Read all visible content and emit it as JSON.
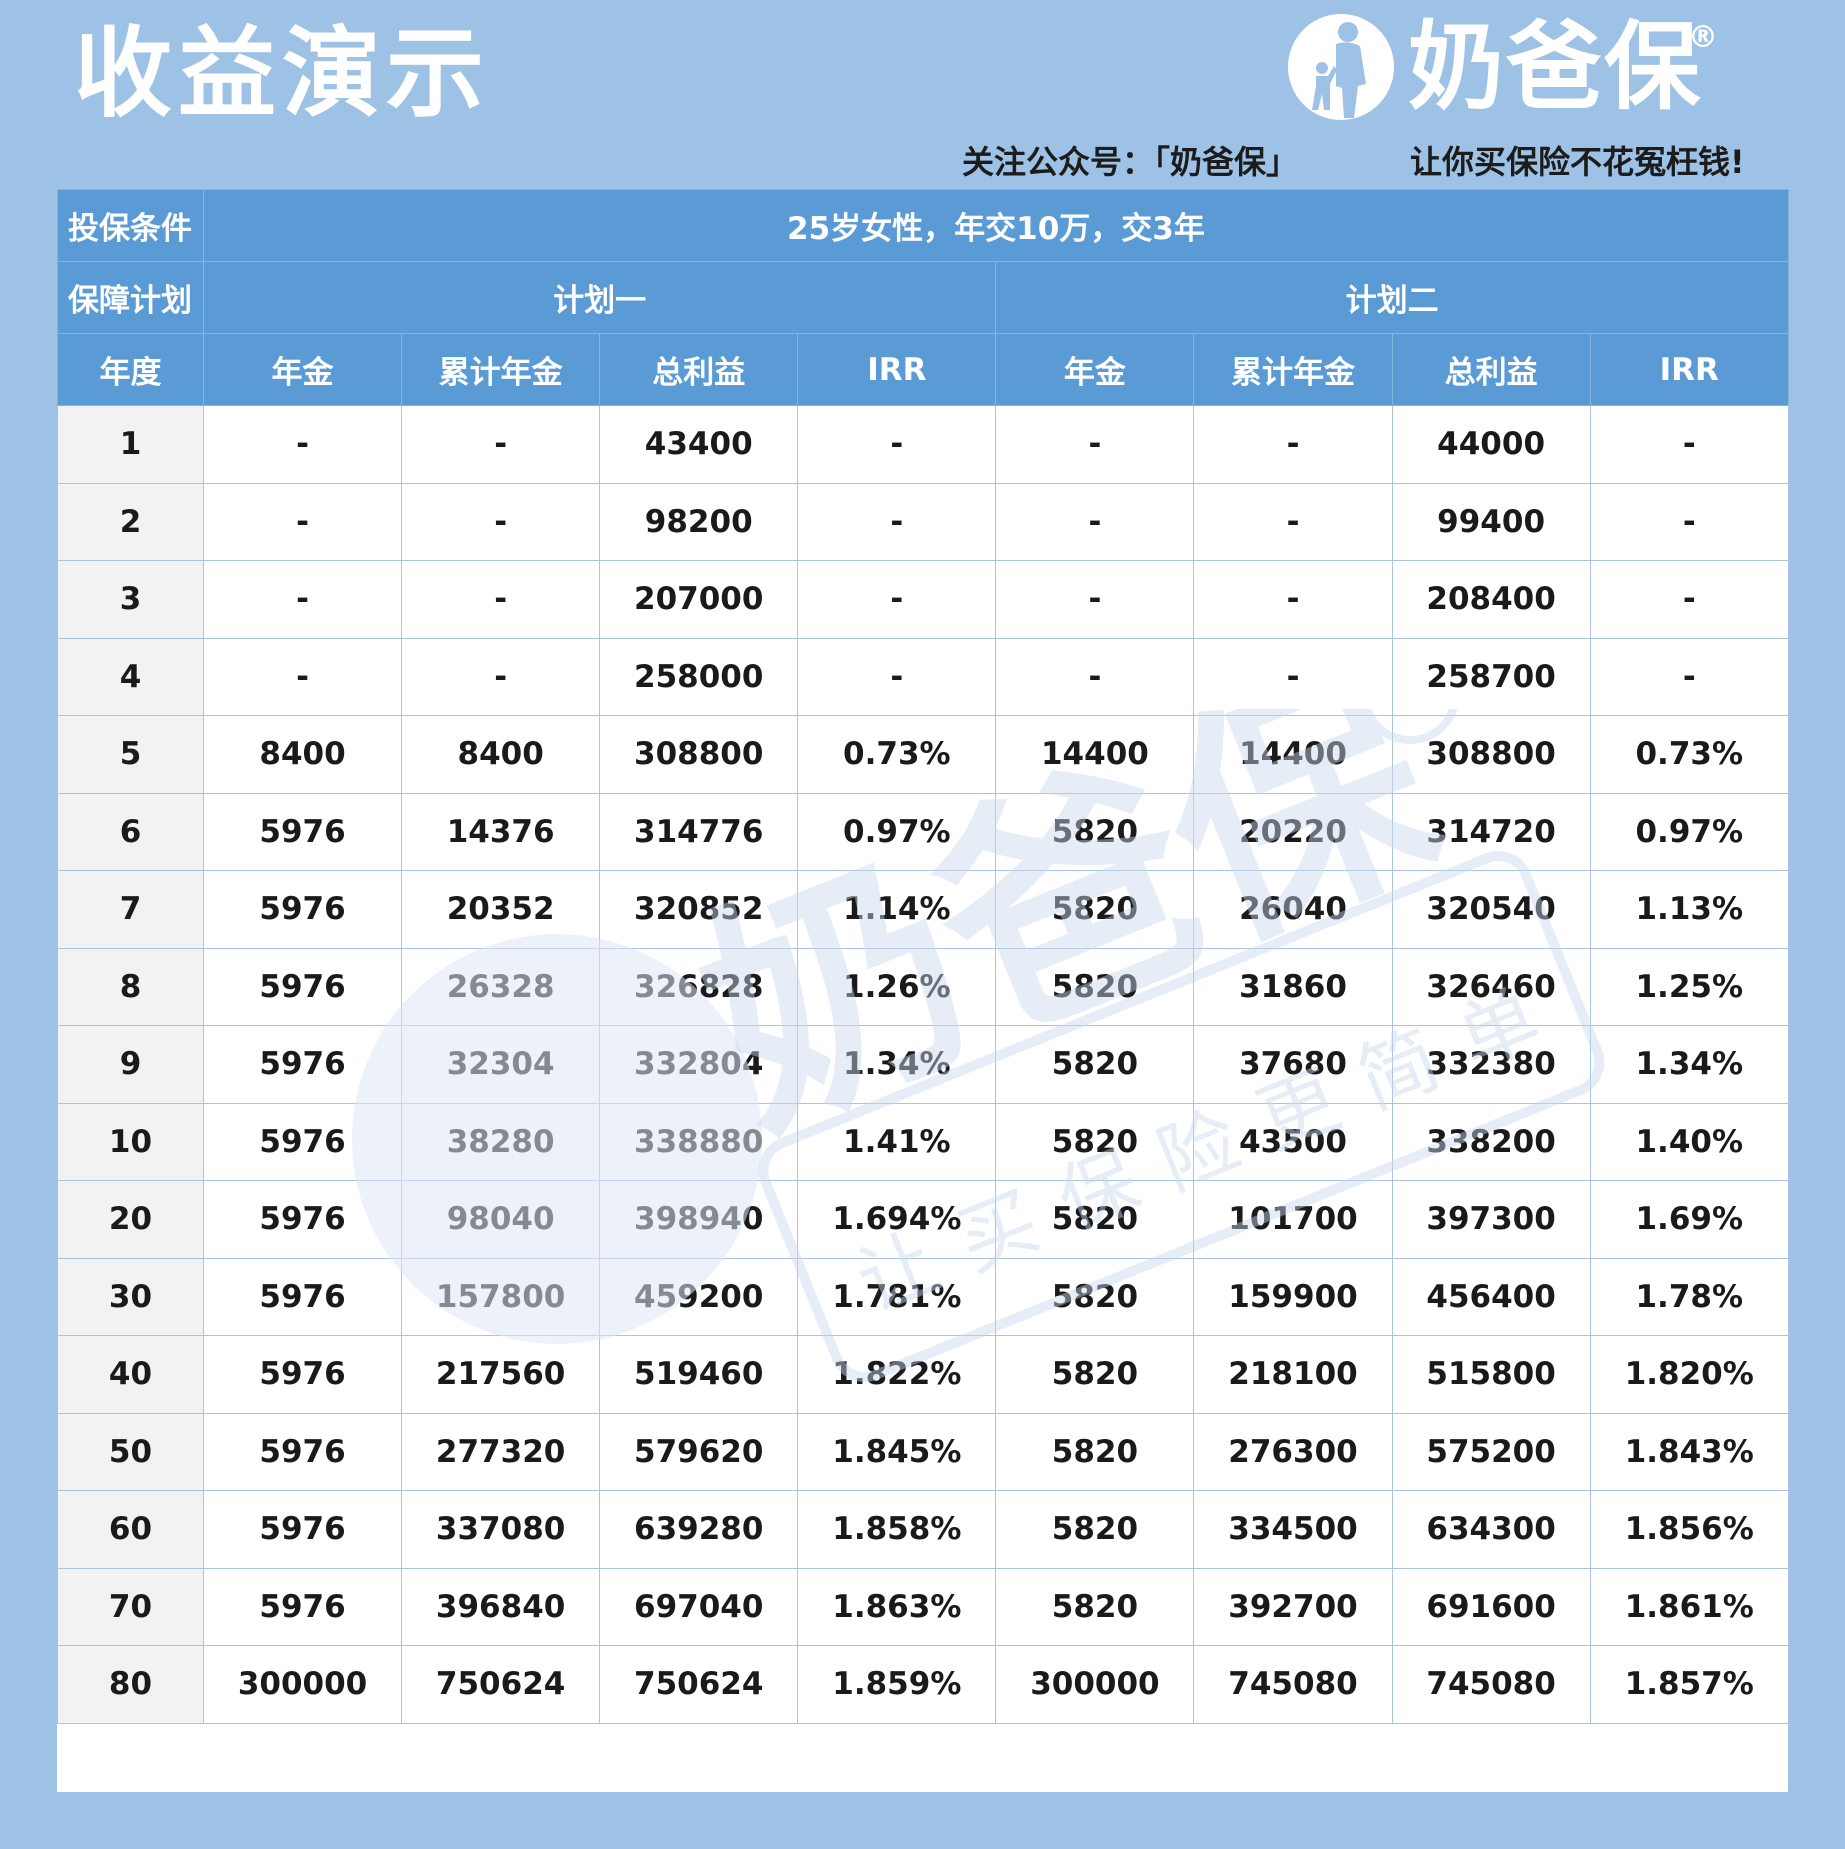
{
  "header": {
    "title": "收益演示",
    "logo_text": "奶爸保",
    "logo_mark": "®",
    "follow_text": "关注公众号：「奶爸保」",
    "slogan": "让你买保险不花冤枉钱!"
  },
  "table": {
    "conditions_label": "投保条件",
    "conditions_value": "25岁女性，年交10万，交3年",
    "plan_label": "保障计划",
    "plan1": "计划一",
    "plan2": "计划二",
    "columns": [
      "年度",
      "年金",
      "累计年金",
      "总利益",
      "IRR",
      "年金",
      "累计年金",
      "总利益",
      "IRR"
    ],
    "rows": [
      [
        "1",
        "-",
        "-",
        "43400",
        "-",
        "-",
        "-",
        "44000",
        "-"
      ],
      [
        "2",
        "-",
        "-",
        "98200",
        "-",
        "-",
        "-",
        "99400",
        "-"
      ],
      [
        "3",
        "-",
        "-",
        "207000",
        "-",
        "-",
        "-",
        "208400",
        "-"
      ],
      [
        "4",
        "-",
        "-",
        "258000",
        "-",
        "-",
        "-",
        "258700",
        "-"
      ],
      [
        "5",
        "8400",
        "8400",
        "308800",
        "0.73%",
        "14400",
        "14400",
        "308800",
        "0.73%"
      ],
      [
        "6",
        "5976",
        "14376",
        "314776",
        "0.97%",
        "5820",
        "20220",
        "314720",
        "0.97%"
      ],
      [
        "7",
        "5976",
        "20352",
        "320852",
        "1.14%",
        "5820",
        "26040",
        "320540",
        "1.13%"
      ],
      [
        "8",
        "5976",
        "26328",
        "326828",
        "1.26%",
        "5820",
        "31860",
        "326460",
        "1.25%"
      ],
      [
        "9",
        "5976",
        "32304",
        "332804",
        "1.34%",
        "5820",
        "37680",
        "332380",
        "1.34%"
      ],
      [
        "10",
        "5976",
        "38280",
        "338880",
        "1.41%",
        "5820",
        "43500",
        "338200",
        "1.40%"
      ],
      [
        "20",
        "5976",
        "98040",
        "398940",
        "1.694%",
        "5820",
        "101700",
        "397300",
        "1.69%"
      ],
      [
        "30",
        "5976",
        "157800",
        "459200",
        "1.781%",
        "5820",
        "159900",
        "456400",
        "1.78%"
      ],
      [
        "40",
        "5976",
        "217560",
        "519460",
        "1.822%",
        "5820",
        "218100",
        "515800",
        "1.820%"
      ],
      [
        "50",
        "5976",
        "277320",
        "579620",
        "1.845%",
        "5820",
        "276300",
        "575200",
        "1.843%"
      ],
      [
        "60",
        "5976",
        "337080",
        "639280",
        "1.858%",
        "5820",
        "334500",
        "634300",
        "1.856%"
      ],
      [
        "70",
        "5976",
        "396840",
        "697040",
        "1.863%",
        "5820",
        "392700",
        "691600",
        "1.861%"
      ],
      [
        "80",
        "300000",
        "750624",
        "750624",
        "1.859%",
        "300000",
        "745080",
        "745080",
        "1.857%"
      ]
    ]
  },
  "watermark": {
    "brand": "奶爸保",
    "tagline": "让买保险更简单"
  },
  "colors": {
    "background": "#9ec2e6",
    "header_blue": "#5b9bd5",
    "year_cell": "#f2f2f2"
  }
}
